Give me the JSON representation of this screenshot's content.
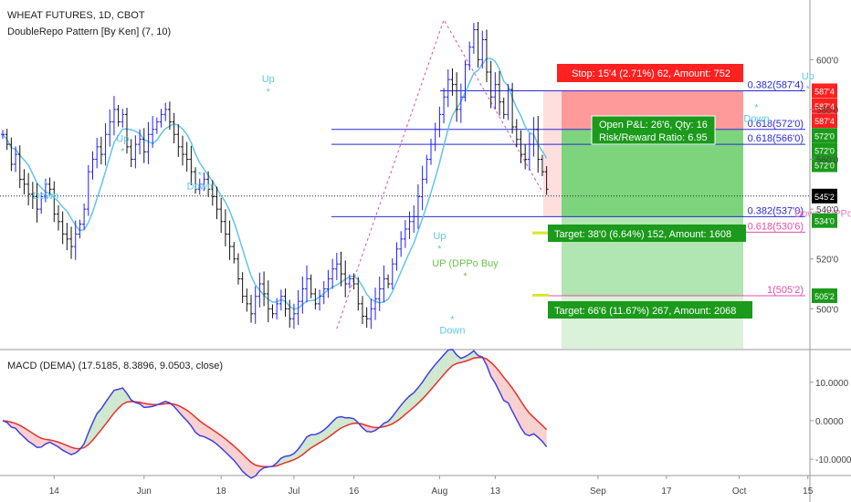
{
  "header": {
    "title": "WHEAT FUTURES, 1D, CBOT",
    "indicator": "DoubleRepo Pattern [By Ken] (7, 10)"
  },
  "colors": {
    "up_blue": "#1e1eff",
    "bar_black": "#111111",
    "signal_text": "#5fc7e6",
    "dppo_buy": "#6cc24a",
    "dppo_sell": "#e87ac0",
    "fib_blue": "#2a2ad8",
    "fib_pink": "#e24fa8",
    "stop_red": "#ff2020",
    "target_green": "#1b9a1b",
    "macd_line": "#4040e0",
    "signal_line": "#e8302a",
    "hist_green": "#cfe8cf",
    "hist_red": "#f8d0d0"
  },
  "price_axis": {
    "ticks": [
      "600'0",
      "580'0",
      "560'0",
      "540'0",
      "520'0",
      "500'0"
    ],
    "price_tags": [
      {
        "label": "587'4",
        "color": "#ff2020",
        "price": 587.5
      },
      {
        "label": "587'4",
        "color": "#ff2020",
        "price": 581.5
      },
      {
        "label": "587'4",
        "color": "#ff2020",
        "price": 575.5
      },
      {
        "label": "572'0",
        "color": "#1b9a1b",
        "price": 569.6
      },
      {
        "label": "572'0",
        "color": "#1b9a1b",
        "price": 563.7
      },
      {
        "label": "572'0",
        "color": "#1b9a1b",
        "price": 557.8
      },
      {
        "label": "545'2",
        "color": "#000000",
        "price": 545.25
      },
      {
        "label": "534'0",
        "color": "#1b9a1b",
        "price": 535.4
      },
      {
        "label": "505'2",
        "color": "#1b9a1b",
        "price": 505.25
      }
    ]
  },
  "time_axis": {
    "labels": [
      "14",
      "Jun",
      "18",
      "Jul",
      "16",
      "Aug",
      "13",
      "Sep",
      "17",
      "Oct",
      "15"
    ]
  },
  "fib_levels": [
    {
      "label": "0.382(587'4)",
      "price": 587.5,
      "color": "#2a2ad8"
    },
    {
      "label": "0.618(572'0)",
      "price": 572.0,
      "color": "#2a2ad8"
    },
    {
      "label": "0.618(566'0)",
      "price": 566.0,
      "color": "#2a2ad8"
    },
    {
      "label": "0.382(537'0)",
      "price": 537.0,
      "color": "#2a2ad8"
    },
    {
      "label": "0.618(530'6)",
      "price": 530.75,
      "color": "#e24fa8"
    },
    {
      "label": "1(505'2)",
      "price": 505.25,
      "color": "#e24fa8"
    }
  ],
  "trade_boxes": {
    "stop": "Stop: 15'4 (2.71%) 62, Amount: 752",
    "open_pnl": "Open P&L: 26'6, Qty: 16",
    "risk_reward": "Risk/Reward Ratio: 6.95",
    "target1": "Target: 38'0 (6.64%) 152, Amount: 1608",
    "target2": "Target: 66'6 (11.67%) 267, Amount: 2068"
  },
  "signals": [
    {
      "text": "Up",
      "bar": 62,
      "price": 591
    },
    {
      "text": "Up",
      "bar": 28,
      "price": 567
    },
    {
      "text": "Down",
      "bar": 10,
      "price": 544
    },
    {
      "text": "Down",
      "bar": 46,
      "price": 548
    },
    {
      "text": "Up",
      "bar": 102,
      "price": 528
    },
    {
      "text": "Down",
      "bar": 105,
      "price": 490
    },
    {
      "text": "Up",
      "bar": 188,
      "price": 592
    },
    {
      "text": "Down",
      "bar": 176,
      "price": 575
    },
    {
      "text": "UP (DPPo Buy",
      "bar": 108,
      "price": 517
    },
    {
      "text": "Down (DPPo Sell",
      "bar": 194,
      "price": 537
    }
  ],
  "macd": {
    "label": "MACD (DEMA) (17.5185, 8.3896, 9.0503, close)",
    "ticks": [
      "10.0000",
      "0.0000",
      "-10.0000"
    ]
  },
  "chart_data": {
    "type": "ohlc",
    "title": "WHEAT FUTURES, 1D, CBOT",
    "price_range": [
      484,
      621
    ],
    "macd_range": [
      -14,
      18
    ],
    "series": [
      {
        "name": "closes",
        "values": [
          570,
          566,
          558,
          562,
          552,
          550,
          546,
          545,
          540,
          545,
          550,
          548,
          538,
          535,
          530,
          528,
          525,
          530,
          534,
          540,
          555,
          560,
          565,
          562,
          570,
          575,
          580,
          575,
          578,
          565,
          560,
          566,
          568,
          563,
          570,
          572,
          575,
          578,
          580,
          575,
          570,
          565,
          562,
          560,
          555,
          548,
          550,
          552,
          548,
          545,
          540,
          535,
          530,
          525,
          520,
          512,
          505,
          502,
          498,
          505,
          510,
          506,
          500,
          498,
          502,
          505,
          500,
          496,
          498,
          503,
          508,
          512,
          506,
          502,
          505,
          508,
          512,
          516,
          518,
          514,
          510,
          512,
          510,
          502,
          497,
          496,
          500,
          504,
          508,
          512,
          510,
          518,
          524,
          528,
          532,
          535,
          537,
          545,
          552,
          560,
          566,
          572,
          578,
          585,
          592,
          590,
          580,
          585,
          598,
          605,
          612,
          600,
          608,
          595,
          585,
          590,
          583,
          578,
          588,
          573,
          568,
          562,
          560,
          566,
          572,
          560,
          555,
          548
        ]
      }
    ]
  }
}
